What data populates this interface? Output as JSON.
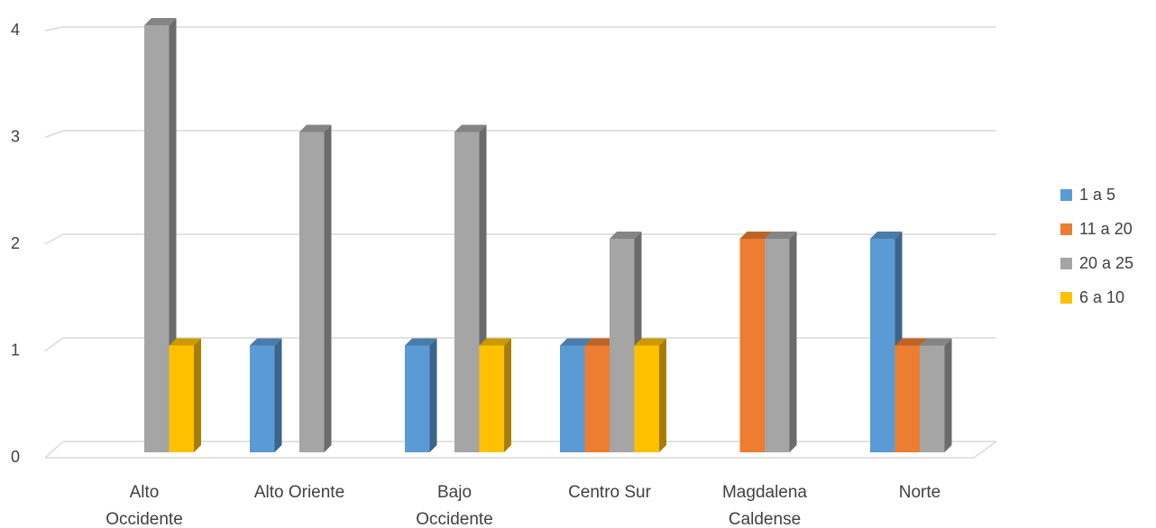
{
  "chart_data": {
    "type": "bar",
    "title": "",
    "xlabel": "",
    "ylabel": "",
    "ylim": [
      0,
      4
    ],
    "yticks": [
      "0",
      "1",
      "2",
      "3",
      "4"
    ],
    "grid": true,
    "legend_position": "right",
    "style": "3d-clustered-column",
    "categories": [
      [
        "Alto",
        "Occidente"
      ],
      [
        "Alto Oriente"
      ],
      [
        "Bajo",
        "Occidente"
      ],
      [
        "Centro Sur"
      ],
      [
        "Magdalena",
        "Caldense"
      ],
      [
        "Norte"
      ]
    ],
    "series": [
      {
        "name": "1 a 5",
        "color": "#5B9BD5",
        "values": [
          0,
          1,
          1,
          1,
          0,
          2
        ]
      },
      {
        "name": "11 a 20",
        "color": "#ED7D31",
        "values": [
          0,
          0,
          0,
          1,
          2,
          1
        ]
      },
      {
        "name": "20 a 25",
        "color": "#A5A5A5",
        "values": [
          4,
          3,
          3,
          2,
          2,
          1
        ]
      },
      {
        "name": "6 a 10",
        "color": "#FFC000",
        "values": [
          1,
          0,
          1,
          1,
          0,
          0
        ]
      }
    ]
  }
}
